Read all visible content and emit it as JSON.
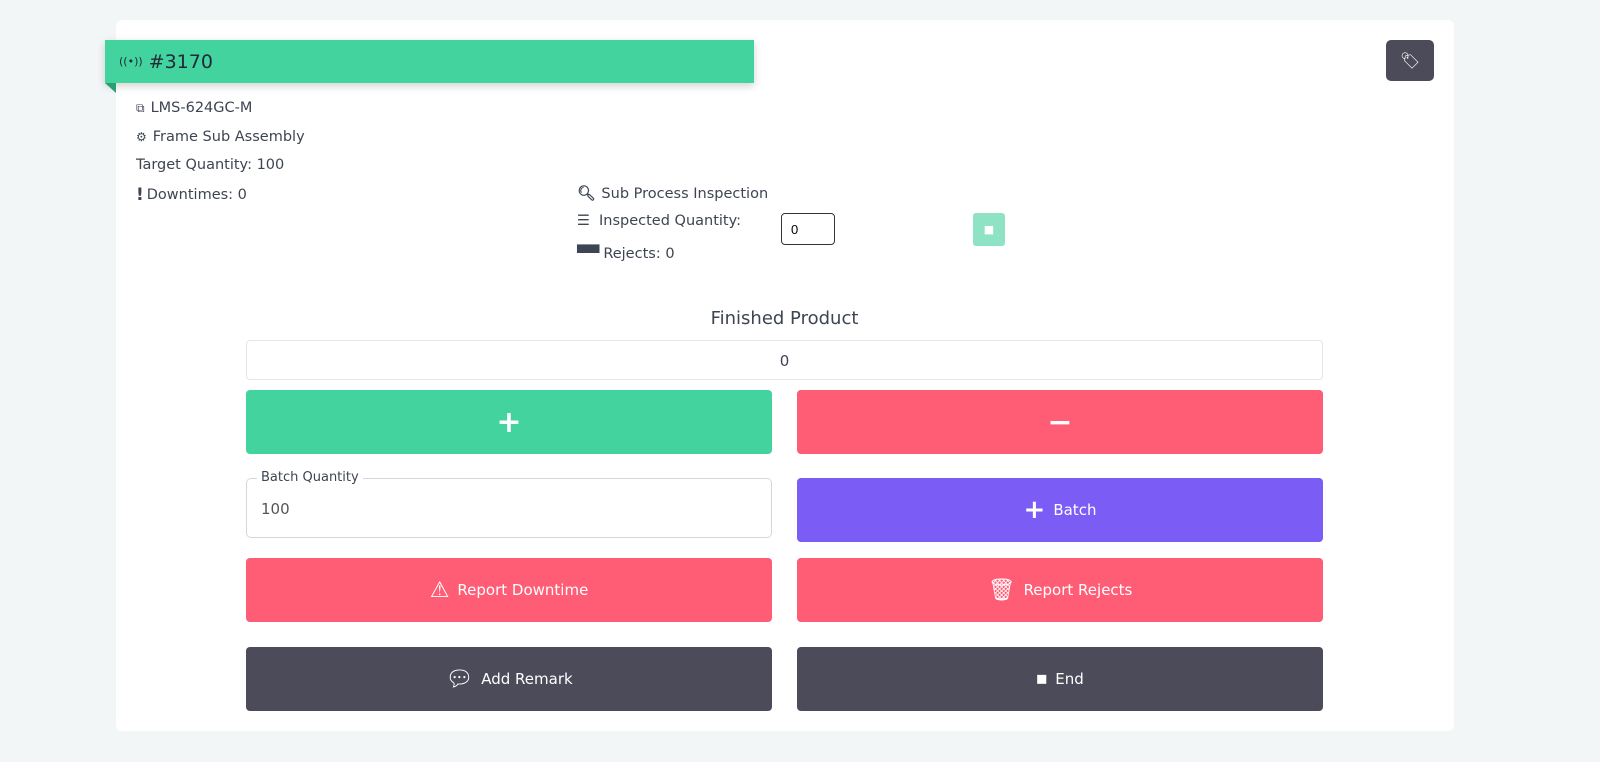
{
  "job": {
    "id": "#3170",
    "part": "LMS-624GC-M",
    "process": "Frame Sub Assembly",
    "target": "Target Quantity: 100",
    "downtimes": "Downtimes: 0"
  },
  "inspection": {
    "title": "Sub Process Inspection",
    "inspected_label": "Inspected Quantity:",
    "inspected_value": "0",
    "rejects": "Rejects: 0"
  },
  "finished": {
    "title": "Finished Product",
    "value": "0"
  },
  "buttons": {
    "plus": "+",
    "minus": "−",
    "batch_label": "Batch Quantity",
    "batch_value": "100",
    "add_batch": "Batch",
    "downtime": "Report Downtime",
    "rejects": "Report Rejects",
    "remark": "Add Remark",
    "end": "End"
  },
  "colors": {
    "green": "#43d39e",
    "red": "#ff5c75",
    "purple": "#7b5cf5",
    "dark": "#4b4b5a"
  }
}
